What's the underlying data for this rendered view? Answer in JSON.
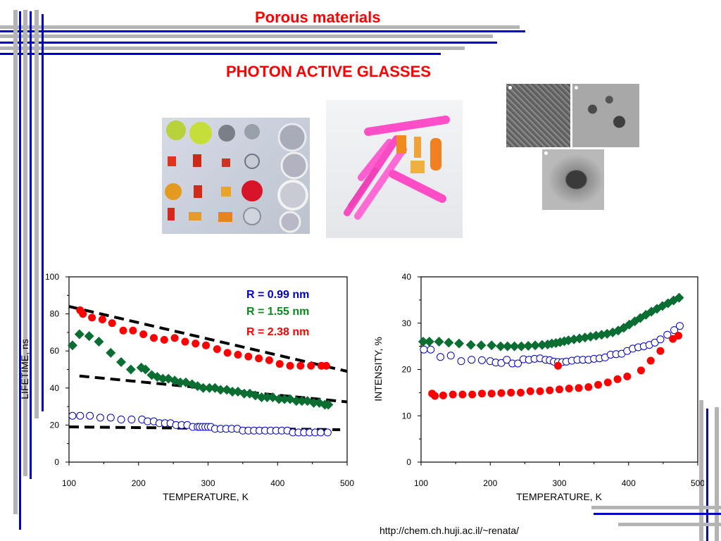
{
  "header": {
    "title": "Porous materials",
    "subtitle": "PHOTON ACTIVE GLASSES"
  },
  "footer": {
    "url": "http://chem.ch.huji.ac.il/~renata/"
  },
  "colors": {
    "title": "#ff0000",
    "line_gray": "#b4b4b4",
    "line_blue": "#0000c8",
    "red": "#ff0000",
    "green": "#0a6e32",
    "blue": "#0000cc"
  },
  "photos": [
    {
      "name": "colored-glass-pieces-photo"
    },
    {
      "name": "pink-glass-rods-photo"
    },
    {
      "name": "tem-micrograph-1"
    },
    {
      "name": "tem-micrograph-2"
    },
    {
      "name": "tem-micrograph-3"
    }
  ],
  "chart_data": [
    {
      "type": "scatter",
      "xlabel": "TEMPERATURE, K",
      "ylabel": "LIFETIME, ns",
      "xlim": [
        100,
        500
      ],
      "ylim": [
        0,
        100
      ],
      "xticks": [
        "100",
        "200",
        "300",
        "400",
        "500"
      ],
      "yticks": [
        "0",
        "20",
        "40",
        "60",
        "80",
        "100"
      ],
      "legend": [
        "R = 0.99 nm",
        "R = 1.55 nm",
        "R = 2.38 nm"
      ],
      "series": [
        {
          "name": "R = 2.38 nm",
          "marker": "filled-circle",
          "color": "#ff0000",
          "x": [
            116,
            120,
            133,
            148,
            162,
            178,
            192,
            207,
            222,
            237,
            252,
            267,
            282,
            297,
            313,
            328,
            343,
            358,
            373,
            388,
            403,
            418,
            433,
            448,
            463,
            470
          ],
          "y": [
            82,
            80,
            78,
            77,
            75,
            71,
            71,
            69,
            67,
            66,
            67,
            65,
            64,
            63,
            61,
            59,
            58,
            57,
            56,
            55,
            53,
            52,
            52,
            52,
            52,
            52
          ]
        },
        {
          "name": "R = 1.55 nm",
          "marker": "filled-diamond",
          "color": "#0a6e32",
          "x": [
            105,
            115,
            129,
            143,
            160,
            175,
            189,
            204,
            210,
            219,
            227,
            235,
            243,
            252,
            260,
            268,
            277,
            285,
            293,
            302,
            310,
            318,
            327,
            335,
            343,
            352,
            360,
            368,
            377,
            385,
            393,
            402,
            410,
            418,
            427,
            435,
            443,
            452,
            460,
            468,
            473
          ],
          "y": [
            63,
            69,
            68,
            65,
            59,
            54,
            50,
            51,
            50,
            47,
            46,
            45,
            45,
            44,
            43,
            43,
            42,
            41,
            40,
            40,
            40,
            39,
            39,
            38,
            38,
            37,
            37,
            36,
            35,
            35,
            35,
            34,
            34,
            34,
            33,
            33,
            33,
            32,
            32,
            31,
            31
          ]
        },
        {
          "name": "R = 0.99 nm",
          "marker": "open-circle",
          "color": "#0000cc",
          "x": [
            105,
            116,
            130,
            145,
            160,
            175,
            190,
            205,
            213,
            222,
            230,
            238,
            246,
            254,
            262,
            270,
            278,
            285,
            288,
            292,
            296,
            300,
            304,
            310,
            318,
            326,
            334,
            342,
            350,
            358,
            366,
            374,
            382,
            390,
            398,
            406,
            414,
            422,
            430,
            438,
            446,
            454,
            462,
            472
          ],
          "y": [
            25,
            25,
            25,
            24,
            24,
            23,
            23,
            23,
            22,
            22,
            21,
            21,
            21,
            20,
            20,
            20,
            19,
            19,
            19,
            19,
            19,
            19,
            19,
            18,
            18,
            18,
            18,
            18,
            17,
            17,
            17,
            17,
            17,
            17,
            17,
            17,
            17,
            16,
            16,
            16,
            16,
            16,
            16,
            16
          ]
        }
      ],
      "fit_lines": [
        {
          "x": [
            100,
            500
          ],
          "y": [
            84,
            49
          ]
        },
        {
          "x": [
            115,
            500
          ],
          "y": [
            46.5,
            32.5
          ]
        },
        {
          "x": [
            100,
            490
          ],
          "y": [
            19,
            17.5
          ]
        }
      ]
    },
    {
      "type": "scatter",
      "xlabel": "TEMPERATURE, K",
      "ylabel": "INTENSITY, %",
      "xlim": [
        100,
        500
      ],
      "ylim": [
        0,
        40
      ],
      "xticks": [
        "100",
        "200",
        "300",
        "400",
        "500"
      ],
      "yticks": [
        "0",
        "10",
        "20",
        "30",
        "40"
      ],
      "series": [
        {
          "name": "",
          "marker": "filled-diamond",
          "color": "#0a6e32",
          "x": [
            103,
            112,
            126,
            140,
            155,
            172,
            187,
            202,
            215,
            225,
            235,
            245,
            255,
            265,
            275,
            283,
            289,
            295,
            301,
            307,
            313,
            321,
            329,
            337,
            345,
            353,
            361,
            369,
            377,
            385,
            393,
            401,
            409,
            417,
            425,
            433,
            441,
            449,
            457,
            465,
            473
          ],
          "y": [
            26,
            26,
            26,
            25.8,
            25.6,
            25.3,
            25.2,
            25.2,
            25,
            25,
            25,
            25,
            25.1,
            25.2,
            25.3,
            25.4,
            25.6,
            25.7,
            25.9,
            26.1,
            26.3,
            26.5,
            26.7,
            26.9,
            27.1,
            27.3,
            27.5,
            27.7,
            28,
            28.4,
            29,
            29.7,
            30.4,
            31.1,
            31.8,
            32.5,
            33.1,
            33.7,
            34.3,
            34.9,
            35.5
          ]
        },
        {
          "name": "",
          "marker": "open-circle",
          "color": "#0000cc",
          "x": [
            104,
            114,
            128,
            143,
            158,
            173,
            188,
            200,
            208,
            216,
            224,
            232,
            240,
            248,
            256,
            264,
            272,
            280,
            286,
            292,
            298,
            304,
            310,
            318,
            326,
            334,
            342,
            350,
            358,
            366,
            374,
            382,
            390,
            398,
            406,
            414,
            422,
            430,
            438,
            446,
            456,
            466,
            474
          ],
          "y": [
            24.3,
            24.3,
            22.7,
            23,
            21.8,
            22.1,
            22,
            21.8,
            21.5,
            21.4,
            22.1,
            21.3,
            21.3,
            22.2,
            22.1,
            22.3,
            22.4,
            22.1,
            22,
            21.7,
            21.6,
            21.6,
            21.7,
            21.9,
            22.1,
            22.1,
            22.1,
            22.3,
            22.4,
            22.6,
            23.2,
            23.3,
            23.4,
            24,
            24.5,
            24.8,
            25,
            25.3,
            25.8,
            26.5,
            27.5,
            28.5,
            29.4
          ]
        },
        {
          "name": "",
          "marker": "filled-circle",
          "color": "#ff0000",
          "x": [
            116,
            120,
            132,
            146,
            160,
            174,
            188,
            202,
            216,
            230,
            244,
            258,
            272,
            286,
            298,
            300,
            314,
            328,
            342,
            356,
            370,
            384,
            398,
            418,
            432,
            446,
            464,
            472
          ],
          "y": [
            14.8,
            14.3,
            14.4,
            14.6,
            14.6,
            14.6,
            14.8,
            14.8,
            14.9,
            15,
            15,
            15.3,
            15.3,
            15.5,
            20.8,
            15.7,
            15.9,
            16,
            16.2,
            16.7,
            17.2,
            17.9,
            18.5,
            19.8,
            21.9,
            24,
            26.6,
            27.3
          ]
        }
      ]
    }
  ]
}
